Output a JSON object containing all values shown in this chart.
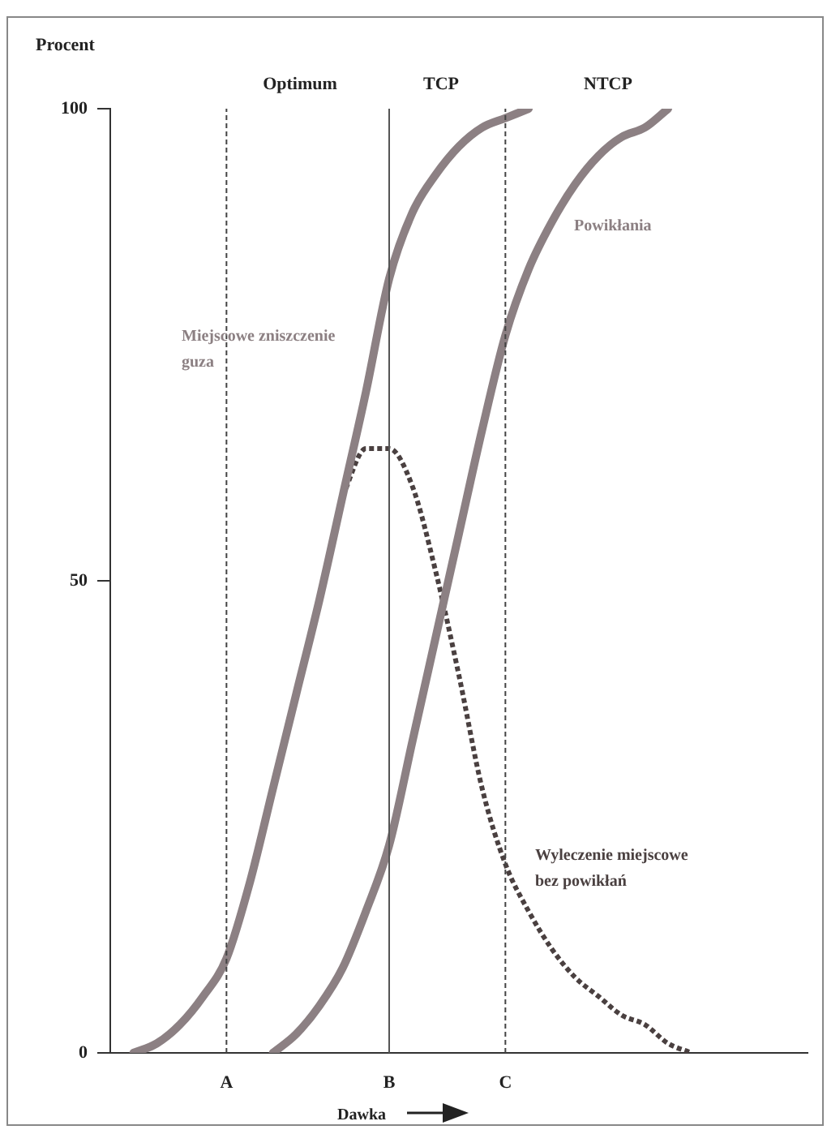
{
  "chart_data": {
    "type": "line",
    "ylabel": "Procent",
    "xlabel": "Dawka",
    "categories": [
      null,
      null,
      null,
      null,
      null,
      "A",
      null,
      null,
      null,
      null,
      null,
      null,
      "B",
      null,
      null,
      null,
      null,
      "C",
      null,
      null,
      null,
      null,
      null,
      null,
      null,
      null,
      null,
      null,
      null,
      null,
      null
    ],
    "ylim": [
      0,
      100
    ],
    "yticks": [
      0,
      50,
      100
    ],
    "grid": false,
    "legend": false,
    "marker": "none",
    "series": [
      {
        "name": "Miejscowe zniszczenie guza",
        "color": "#8c8083",
        "line_style": "solid",
        "values": [
          null,
          0,
          1,
          3,
          6,
          10,
          18,
          28,
          38,
          48,
          59,
          70,
          82,
          89,
          93,
          96,
          98,
          99,
          100,
          null,
          null,
          null,
          null,
          null,
          null,
          null,
          null,
          null,
          null,
          null,
          null
        ]
      },
      {
        "name": "Powikłania",
        "color": "#8c8083",
        "line_style": "solid",
        "values": [
          null,
          null,
          null,
          null,
          null,
          null,
          null,
          0,
          2,
          5,
          9,
          15,
          22,
          33,
          44,
          55,
          66,
          76,
          83,
          88,
          92,
          95,
          97,
          98,
          100,
          null,
          null,
          null,
          null,
          null,
          null
        ]
      },
      {
        "name": "Wyleczenie miejscowe bez powikłań",
        "color": "#4a4040",
        "line_style": "dotted",
        "values": [
          null,
          null,
          null,
          null,
          null,
          null,
          null,
          null,
          null,
          null,
          59,
          64,
          64,
          60,
          51,
          40,
          28,
          20,
          15,
          11,
          8,
          6,
          4,
          3,
          1,
          0,
          null,
          null,
          null,
          null,
          null
        ]
      }
    ],
    "ref_lines": [
      {
        "axis": "x",
        "value": "A",
        "color": "#444444",
        "line_style": "dotted"
      },
      {
        "axis": "x",
        "value": "B",
        "color": "#555555",
        "line_style": "solid"
      },
      {
        "axis": "x",
        "value": "C",
        "color": "#444444",
        "line_style": "dotted"
      }
    ],
    "annotations": [
      "Optimum",
      "TCP",
      "NTCP"
    ]
  }
}
